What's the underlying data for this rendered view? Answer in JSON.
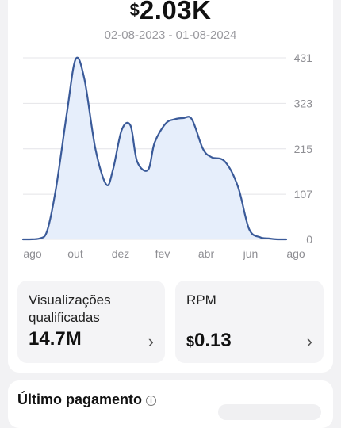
{
  "earnings": {
    "currency_symbol": "$",
    "total": "2.03K",
    "date_range": "02-08-2023 - 01-08-2024"
  },
  "chart_data": {
    "type": "area",
    "x_labels": [
      "ago",
      "out",
      "dez",
      "fev",
      "abr",
      "jun",
      "ago"
    ],
    "y_ticks": [
      "431",
      "323",
      "215",
      "107",
      "0"
    ],
    "ylim": [
      0,
      431
    ],
    "series": [
      {
        "x": [
          0,
          0.3,
          0.75,
          1.1,
          1.5,
          2.0,
          2.4,
          2.8,
          3.3,
          3.8,
          4.1,
          4.5,
          4.9,
          5.2,
          5.7,
          6.0,
          6.5,
          6.9,
          7.3,
          7.7,
          8.2,
          8.6,
          9.2,
          9.8,
          10.3,
          10.8,
          11.2,
          11.6,
          12.0
        ],
        "values": [
          0,
          0,
          2,
          20,
          120,
          300,
          428,
          380,
          215,
          130,
          165,
          260,
          270,
          185,
          165,
          230,
          275,
          285,
          288,
          285,
          215,
          195,
          185,
          125,
          25,
          5,
          2,
          0,
          0
        ]
      }
    ],
    "grid": true,
    "line_color": "#3a5a99",
    "fill_color": "#e6eefb"
  },
  "tiles": [
    {
      "label_line1": "Visualizações",
      "label_line2": "qualificadas",
      "value": "14.7M",
      "chevron": "›"
    },
    {
      "label": "RPM",
      "currency_symbol": "$",
      "value": "0.13",
      "chevron": "›"
    }
  ],
  "payment": {
    "title": "Último pagamento",
    "info_icon": "i"
  }
}
